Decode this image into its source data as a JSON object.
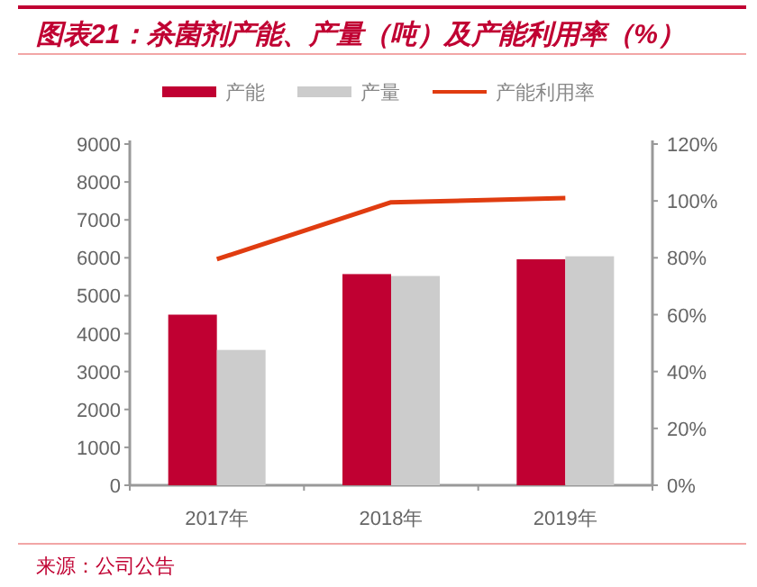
{
  "chart_data": {
    "type": "bar",
    "title": "图表21：杀菌剂产能、产量（吨）及产能利用率（%）",
    "categories": [
      "2017年",
      "2018年",
      "2019年"
    ],
    "series": [
      {
        "name": "产能",
        "color": "#c00032",
        "values": [
          4500,
          5570,
          5960
        ]
      },
      {
        "name": "产量",
        "color": "#cccccc",
        "values": [
          3570,
          5520,
          6040
        ]
      },
      {
        "name": "产能利用率",
        "type": "line",
        "axis": "y2",
        "color": "#e03c10",
        "values": [
          79.5,
          99.5,
          101
        ]
      }
    ],
    "ylim": [
      0,
      9000
    ],
    "yticks": [
      0,
      1000,
      2000,
      3000,
      4000,
      5000,
      6000,
      7000,
      8000,
      9000
    ],
    "y2lim": [
      0,
      120
    ],
    "y2ticks": [
      {
        "value": 0,
        "label": "0%"
      },
      {
        "value": 20,
        "label": "20%"
      },
      {
        "value": 40,
        "label": "40%"
      },
      {
        "value": 60,
        "label": "60%"
      },
      {
        "value": 80,
        "label": "80%"
      },
      {
        "value": 100,
        "label": "100%"
      },
      {
        "value": 120,
        "label": "120%"
      }
    ],
    "legend": "top",
    "grid": false,
    "marker": "none",
    "annotations": [
      "来源：公司公告"
    ]
  }
}
